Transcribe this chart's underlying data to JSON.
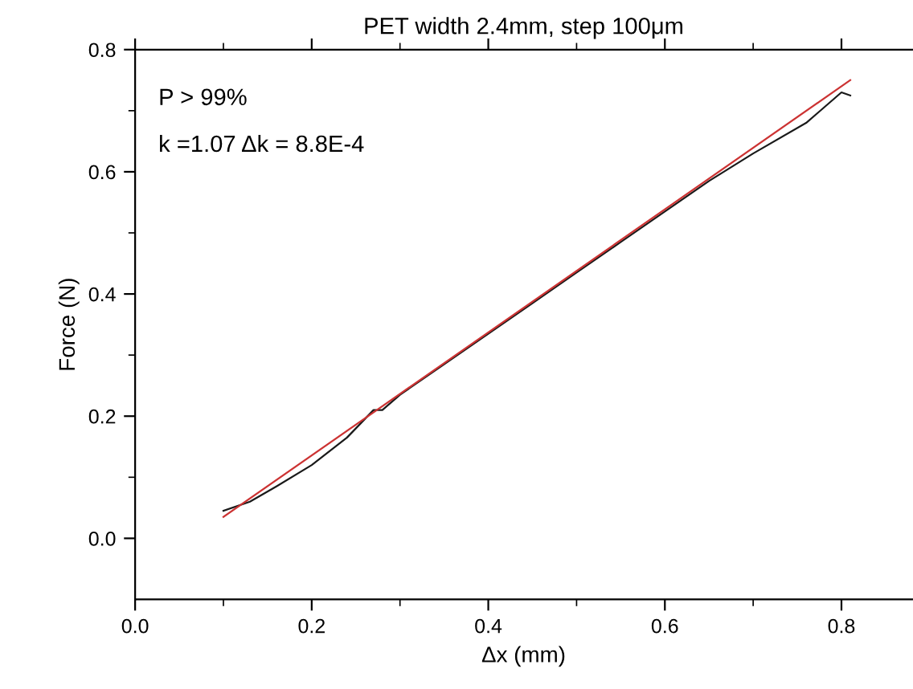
{
  "chart_data": {
    "type": "line",
    "title": "PET width 2.4mm, step 100μm",
    "xlabel": "Δx (mm)",
    "ylabel": "Force (N)",
    "annotations": [
      "P > 99%",
      "k =1.07 Δk = 8.8E-4"
    ],
    "series": [
      {
        "color": "#1a1a1a",
        "x": [
          0.1,
          0.13,
          0.16,
          0.2,
          0.24,
          0.27,
          0.28,
          0.3,
          0.35,
          0.4,
          0.45,
          0.5,
          0.55,
          0.6,
          0.65,
          0.7,
          0.76,
          0.8,
          0.81
        ],
        "values": [
          0.045,
          0.06,
          0.085,
          0.12,
          0.165,
          0.21,
          0.21,
          0.235,
          0.285,
          0.335,
          0.385,
          0.435,
          0.485,
          0.535,
          0.585,
          0.63,
          0.68,
          0.73,
          0.725
        ]
      },
      {
        "color": "#cc3333",
        "x": [
          0.1,
          0.81
        ],
        "values": [
          0.035,
          0.75
        ]
      }
    ],
    "xlim": [
      0.0,
      0.88
    ],
    "xticks": [
      {
        "value": 0.0,
        "label": "0.0"
      },
      0.2,
      0.4,
      0.6,
      0.8
    ],
    "ylim": [
      -0.1,
      0.8
    ],
    "yticks": [
      {
        "value": 0.0,
        "label": "0.0"
      },
      0.2,
      0.4,
      0.6,
      0.8
    ],
    "grid": false,
    "legend": false,
    "marker": "none",
    "line_style": "solid"
  }
}
